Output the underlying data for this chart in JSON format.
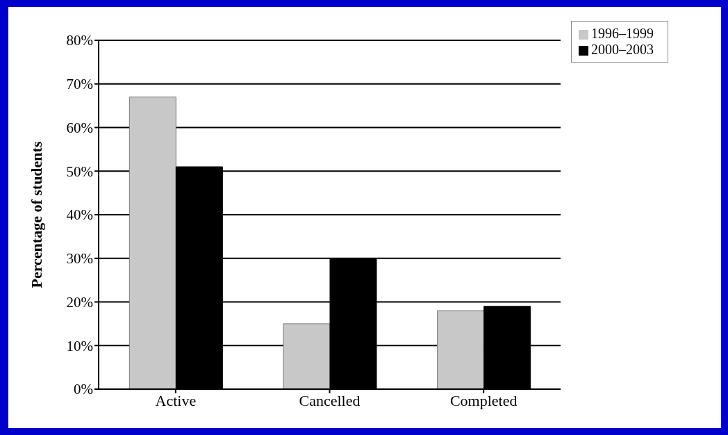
{
  "chart_data": {
    "type": "bar",
    "ylabel": "Percentage of students",
    "categories": [
      "Active",
      "Cancelled",
      "Completed"
    ],
    "series": [
      {
        "name": "1996–1999",
        "color": "#c8c8c8",
        "values": [
          67,
          15,
          18
        ]
      },
      {
        "name": "2000–2003",
        "color": "#000000",
        "values": [
          51,
          30,
          19
        ]
      }
    ],
    "ylim": [
      0,
      80
    ],
    "yticks": [
      {
        "value": 0,
        "label": "0%"
      },
      {
        "value": 10,
        "label": "10%"
      },
      {
        "value": 20,
        "label": "20%"
      },
      {
        "value": 30,
        "label": "30%"
      },
      {
        "value": 40,
        "label": "40%"
      },
      {
        "value": 50,
        "label": "50%"
      },
      {
        "value": 60,
        "label": "60%"
      },
      {
        "value": 70,
        "label": "70%"
      },
      {
        "value": 80,
        "label": "80%"
      }
    ],
    "grid": "y",
    "legend": "top right"
  }
}
